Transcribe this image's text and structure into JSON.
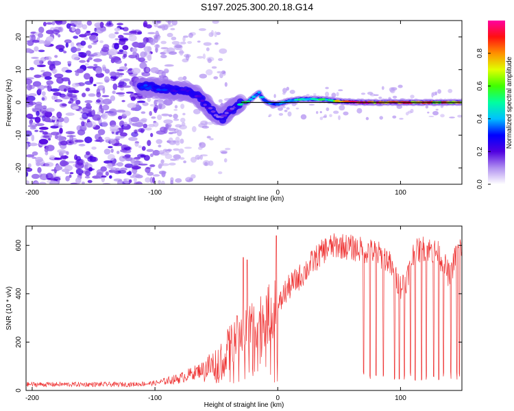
{
  "title": "S197.2025.300.20.18.G14",
  "colors": {
    "snr_line": "#ee3030",
    "ref_line": "#000000",
    "axis": "#000000"
  },
  "chart_data": [
    {
      "type": "heatmap",
      "xlabel": "Height of straight line (km)",
      "ylabel": "Frequency (Hz)",
      "xlim": [
        -205,
        150
      ],
      "ylim": [
        -25,
        25
      ],
      "xticks": [
        -200,
        -100,
        0,
        100
      ],
      "yticks": [
        -20,
        -10,
        0,
        10,
        20
      ],
      "colorbar": {
        "label": "Normalized spectral amplitude",
        "range": [
          0,
          1
        ],
        "ticks": [
          "0.0",
          "0.2",
          "0.4",
          "0.6",
          "0.8"
        ],
        "tick_values": [
          0.0,
          0.2,
          0.4,
          0.6,
          0.8
        ]
      },
      "reference_line": {
        "y": 0,
        "x_from": -30,
        "x_to": 150
      },
      "ridge_frequency_hz": [
        [
          -110,
          5
        ],
        [
          -100,
          4.5
        ],
        [
          -90,
          4
        ],
        [
          -80,
          3.5
        ],
        [
          -75,
          3.5
        ],
        [
          -70,
          3
        ],
        [
          -65,
          2
        ],
        [
          -60,
          0
        ],
        [
          -55,
          -2
        ],
        [
          -50,
          -4
        ],
        [
          -45,
          -5
        ],
        [
          -40,
          -3
        ],
        [
          -35,
          -1.5
        ],
        [
          -30,
          0
        ],
        [
          -25,
          0
        ],
        [
          -20,
          1.5
        ],
        [
          -15,
          3
        ],
        [
          -12,
          1
        ],
        [
          -8,
          0
        ],
        [
          -4,
          -0.5
        ],
        [
          0,
          -0.5
        ],
        [
          10,
          0.5
        ],
        [
          20,
          1
        ],
        [
          30,
          1
        ],
        [
          40,
          0.8
        ],
        [
          50,
          0.3
        ],
        [
          70,
          0
        ],
        [
          100,
          0
        ],
        [
          150,
          0
        ]
      ],
      "ridge_amplitude": [
        [
          -110,
          0.3
        ],
        [
          -90,
          0.3
        ],
        [
          -70,
          0.25
        ],
        [
          -50,
          0.15
        ],
        [
          -35,
          0.2
        ],
        [
          -28,
          0.6
        ],
        [
          -20,
          0.45
        ],
        [
          -10,
          0.35
        ],
        [
          0,
          0.4
        ],
        [
          20,
          0.5
        ],
        [
          40,
          0.5
        ],
        [
          60,
          0.9
        ],
        [
          90,
          0.85
        ],
        [
          120,
          0.8
        ],
        [
          150,
          0.7
        ]
      ],
      "noise_region_x": [
        -205,
        -110
      ]
    },
    {
      "type": "line",
      "xlabel": "Height of straight line (km)",
      "ylabel": "SNR (10 * v/v)",
      "xlim": [
        -205,
        150
      ],
      "ylim": [
        0,
        680
      ],
      "xticks": [
        -200,
        -100,
        0,
        100
      ],
      "yticks": [
        0,
        200,
        400,
        600
      ],
      "series": [
        {
          "name": "SNR",
          "envelope": [
            [
              -205,
              25
            ],
            [
              -150,
              25
            ],
            [
              -120,
              25
            ],
            [
              -100,
              30
            ],
            [
              -90,
              40
            ],
            [
              -80,
              50
            ],
            [
              -70,
              70
            ],
            [
              -60,
              90
            ],
            [
              -50,
              110
            ],
            [
              -45,
              140
            ],
            [
              -40,
              180
            ],
            [
              -35,
              210
            ],
            [
              -30,
              240
            ],
            [
              -25,
              260
            ],
            [
              -20,
              280
            ],
            [
              -15,
              290
            ],
            [
              -10,
              300
            ],
            [
              -5,
              330
            ],
            [
              0,
              330
            ],
            [
              5,
              400
            ],
            [
              10,
              430
            ],
            [
              20,
              480
            ],
            [
              30,
              540
            ],
            [
              40,
              590
            ],
            [
              50,
              600
            ],
            [
              60,
              590
            ],
            [
              70,
              580
            ],
            [
              80,
              570
            ],
            [
              90,
              540
            ],
            [
              95,
              470
            ],
            [
              100,
              430
            ],
            [
              105,
              460
            ],
            [
              110,
              560
            ],
            [
              115,
              580
            ],
            [
              120,
              590
            ],
            [
              130,
              570
            ],
            [
              135,
              530
            ],
            [
              140,
              470
            ],
            [
              145,
              560
            ],
            [
              150,
              600
            ]
          ],
          "dropouts_x": [
            70,
            75,
            80,
            86,
            95,
            99,
            103,
            108,
            112,
            117,
            121,
            127,
            131,
            135,
            141,
            146,
            148
          ],
          "spikes": [
            [
              -1,
              640
            ],
            [
              -28,
              550
            ],
            [
              -25,
              540
            ]
          ]
        }
      ]
    }
  ]
}
